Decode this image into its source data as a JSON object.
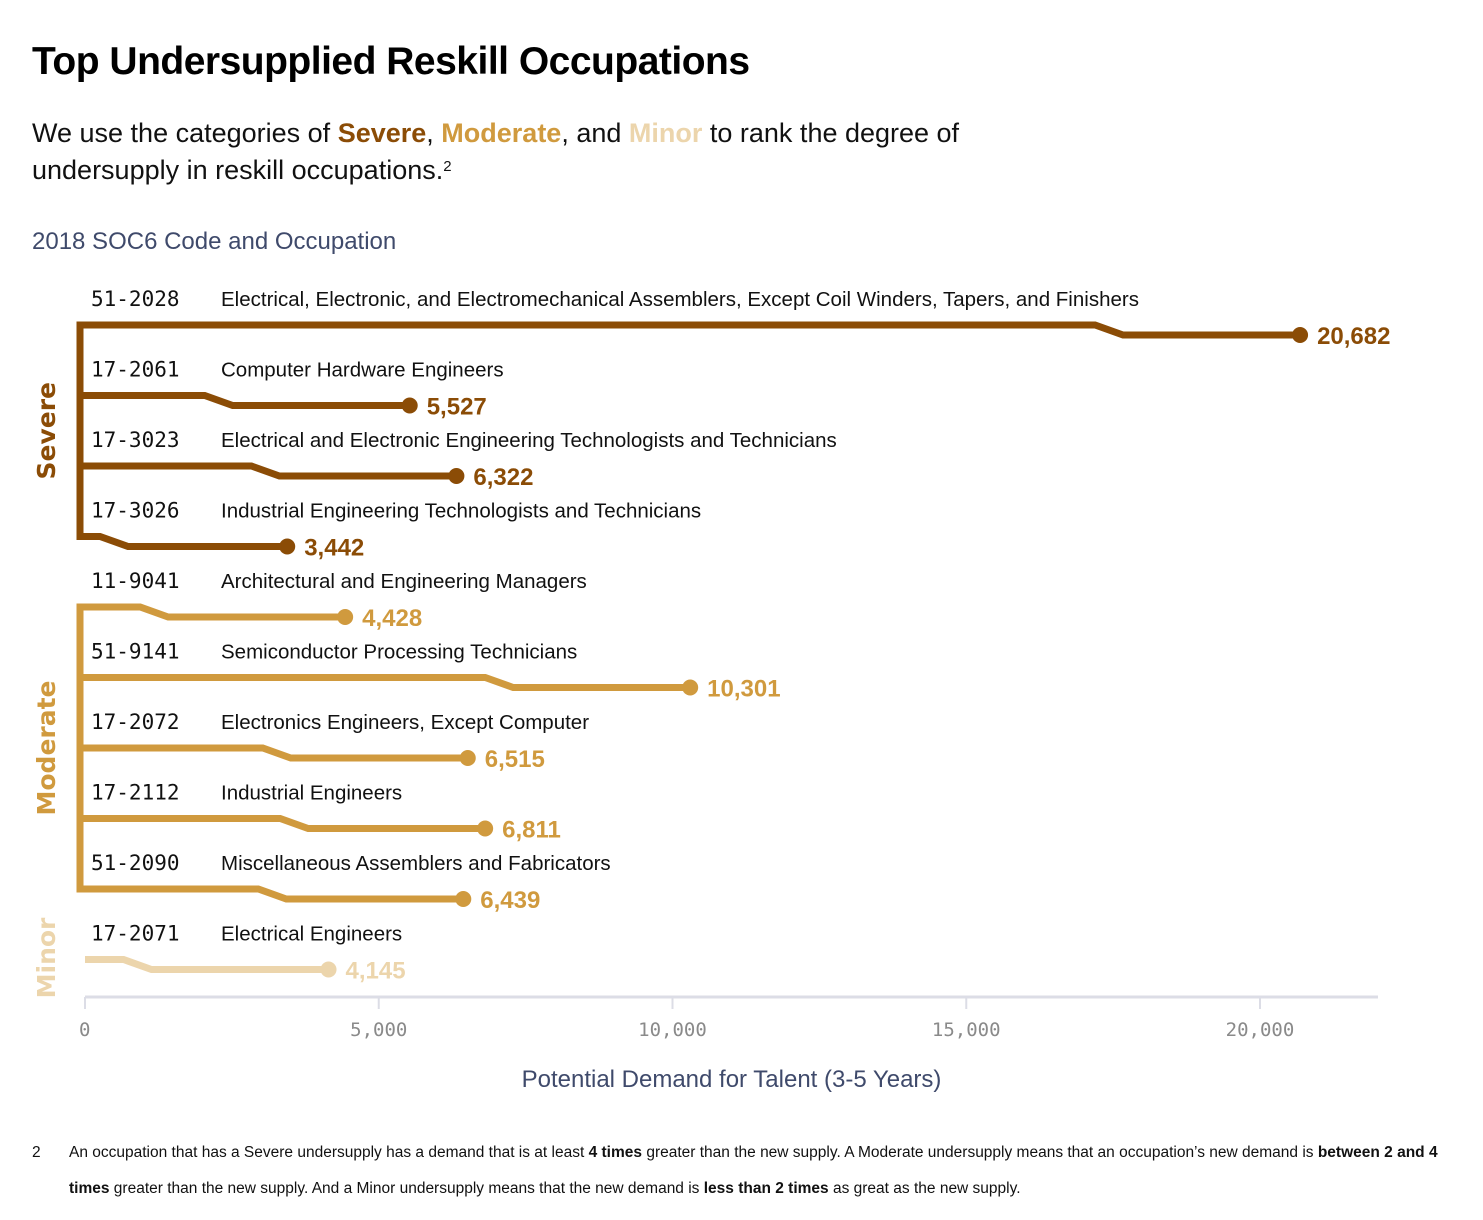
{
  "header": {
    "title": "Top Undersupplied Reskill Occupations",
    "subtitle_pre": "We use the categories of ",
    "subtitle_severe": "Severe",
    "subtitle_sep1": ", ",
    "subtitle_moderate": "Moderate",
    "subtitle_sep2": ", and ",
    "subtitle_minor": "Minor",
    "subtitle_post": " to rank the degree of undersupply in reskill occupations.",
    "subtitle_footnote_ref": "2"
  },
  "colors": {
    "severe": "#8b4c06",
    "moderate": "#d09a3e",
    "minor": "#ecd5ac",
    "axis": "#dcdde6",
    "axis_text": "#3f4a6b"
  },
  "chart_data": {
    "type": "bar",
    "title": "Top Undersupplied Reskill Occupations",
    "ylabel": "2018 SOC6 Code and Occupation",
    "xlabel": "Potential Demand for Talent (3-5 Years)",
    "xlim": [
      0,
      22000
    ],
    "xticks": [
      "0",
      "5,000",
      "10,000",
      "15,000",
      "20,000"
    ],
    "grid": false,
    "legend": null,
    "groups": [
      "Severe",
      "Moderate",
      "Minor"
    ],
    "categories": [
      "51-2028 Electrical, Electronic, and Electromechanical Assemblers, Except Coil Winders, Tapers, and Finishers",
      "17-2061 Computer Hardware Engineers",
      "17-3023 Electrical and Electronic Engineering Technologists and Technicians",
      "17-3026 Industrial Engineering Technologists and Technicians",
      "11-9041 Architectural and Engineering Managers",
      "51-9141 Semiconductor Processing Technicians",
      "17-2072 Electronics Engineers, Except Computer",
      "17-2112 Industrial Engineers",
      "51-2090 Miscellaneous Assemblers and Fabricators",
      "17-2071 Electrical Engineers"
    ],
    "values": [
      20682,
      5527,
      6322,
      3442,
      4428,
      10301,
      6515,
      6811,
      6439,
      4145
    ],
    "rows": [
      {
        "group": "Severe",
        "code": "51-2028",
        "occupation": "Electrical, Electronic, and Electromechanical Assemblers, Except Coil Winders, Tapers, and Finishers",
        "value": 20682,
        "label": "20,682"
      },
      {
        "group": "Severe",
        "code": "17-2061",
        "occupation": "Computer Hardware Engineers",
        "value": 5527,
        "label": "5,527"
      },
      {
        "group": "Severe",
        "code": "17-3023",
        "occupation": "Electrical and Electronic Engineering Technologists and Technicians",
        "value": 6322,
        "label": "6,322"
      },
      {
        "group": "Severe",
        "code": "17-3026",
        "occupation": "Industrial Engineering Technologists and Technicians",
        "value": 3442,
        "label": "3,442"
      },
      {
        "group": "Moderate",
        "code": "11-9041",
        "occupation": "Architectural and Engineering Managers",
        "value": 4428,
        "label": "4,428"
      },
      {
        "group": "Moderate",
        "code": "51-9141",
        "occupation": "Semiconductor Processing Technicians",
        "value": 10301,
        "label": "10,301"
      },
      {
        "group": "Moderate",
        "code": "17-2072",
        "occupation": "Electronics Engineers, Except Computer",
        "value": 6515,
        "label": "6,515"
      },
      {
        "group": "Moderate",
        "code": "17-2112",
        "occupation": "Industrial Engineers",
        "value": 6811,
        "label": "6,811"
      },
      {
        "group": "Moderate",
        "code": "51-2090",
        "occupation": "Miscellaneous Assemblers and Fabricators",
        "value": 6439,
        "label": "6,439"
      },
      {
        "group": "Minor",
        "code": "17-2071",
        "occupation": "Electrical Engineers",
        "value": 4145,
        "label": "4,145"
      }
    ]
  },
  "footnote": {
    "number": "2",
    "t1": "An occupation that has a Severe undersupply has a demand that is at least ",
    "b1": "4 times",
    "t2": " greater than the new supply. A Moderate undersupply means that an occupation’s new demand is ",
    "b2": "between 2 and 4 times",
    "t3": " greater than the new supply. And a Minor undersupply means that the new demand is ",
    "b3": "less than 2 times",
    "t4": " as great as the new supply."
  }
}
